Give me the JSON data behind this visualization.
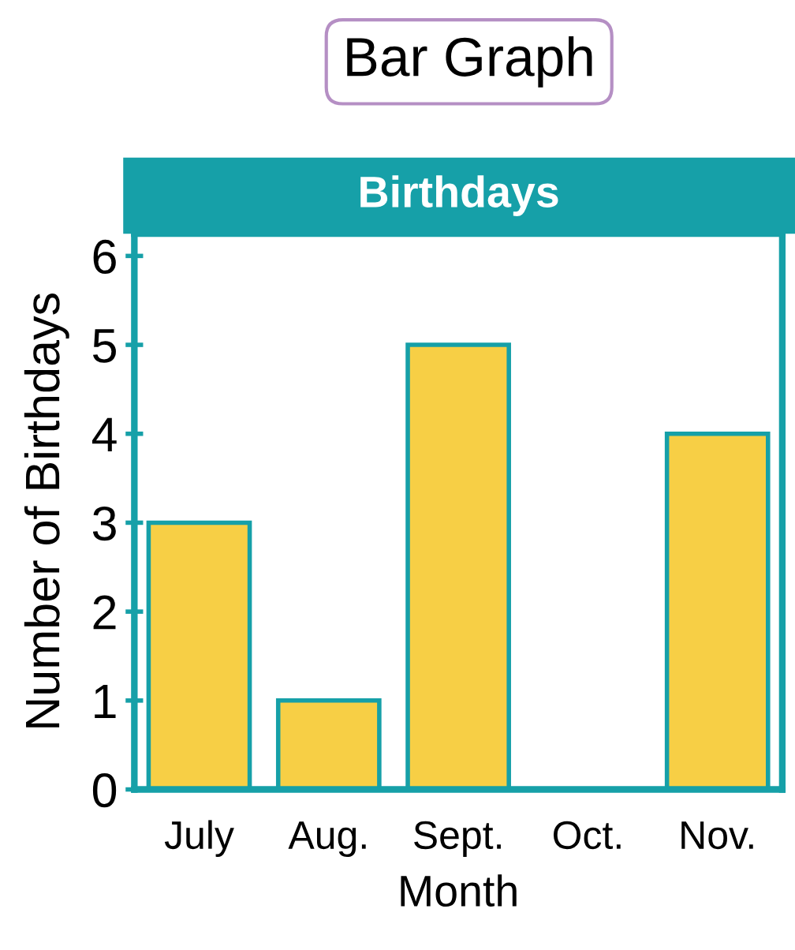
{
  "chart_data": {
    "type": "bar",
    "title": "Bar Graph",
    "subtitle": "Birthdays",
    "xlabel": "Month",
    "ylabel": "Number of Birthdays",
    "categories": [
      "July",
      "Aug.",
      "Sept.",
      "Oct.",
      "Nov."
    ],
    "values": [
      3,
      1,
      5,
      0,
      4
    ],
    "color": "#f7cf45",
    "ylim": [
      0,
      6.25
    ],
    "yticks": [
      0,
      1,
      2,
      3,
      4,
      5,
      6
    ],
    "grid": false,
    "legend": false
  }
}
